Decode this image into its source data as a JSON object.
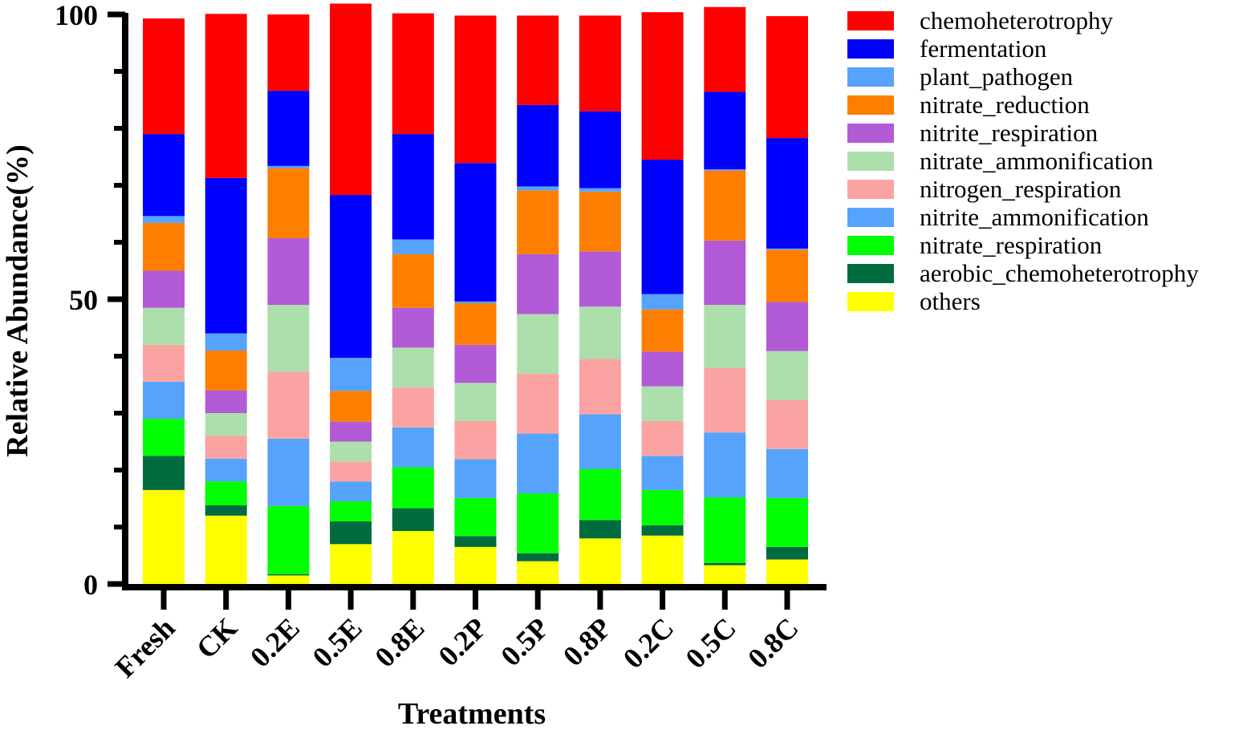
{
  "chart_data": {
    "type": "bar",
    "stacked": true,
    "title": "",
    "xlabel": "Treatments",
    "ylabel": "Relative Abundance(%)",
    "ylim": [
      0,
      100
    ],
    "yticks": [
      0,
      50,
      100
    ],
    "legend_position": "right",
    "categories": [
      "Fresh",
      "CK",
      "0.2E",
      "0.5E",
      "0.8E",
      "0.2P",
      "0.5P",
      "0.8P",
      "0.2C",
      "0.5C",
      "0.8C"
    ],
    "series": [
      {
        "name": "others",
        "color": "#FFFF00",
        "values": [
          16.5,
          12.0,
          1.5,
          7.0,
          9.3,
          6.5,
          4.0,
          8.0,
          8.5,
          3.3,
          4.3
        ]
      },
      {
        "name": "aerobic_chemoheterotrophy",
        "color": "#006B3F",
        "values": [
          6.0,
          1.8,
          0.2,
          4.0,
          4.0,
          1.9,
          1.4,
          3.2,
          1.8,
          0.4,
          2.2
        ]
      },
      {
        "name": "nitrate_respiration",
        "color": "#00FF00",
        "values": [
          6.5,
          4.2,
          12.0,
          3.5,
          7.2,
          6.7,
          10.5,
          9.0,
          6.2,
          11.5,
          8.6
        ]
      },
      {
        "name": "nitrite_ammonification",
        "color": "#55A3FC",
        "values": [
          6.5,
          4.0,
          11.8,
          3.5,
          7.0,
          6.8,
          10.5,
          9.6,
          6.0,
          11.4,
          8.6
        ]
      },
      {
        "name": "nitrogen_respiration",
        "color": "#FBA3A3",
        "values": [
          6.5,
          4.0,
          11.8,
          3.5,
          7.0,
          6.7,
          10.5,
          9.7,
          6.1,
          11.3,
          8.6
        ]
      },
      {
        "name": "nitrate_ammonification",
        "color": "#ADDFAD",
        "values": [
          6.5,
          4.0,
          11.7,
          3.5,
          7.0,
          6.7,
          10.5,
          9.2,
          6.1,
          11.1,
          8.6
        ]
      },
      {
        "name": "nitrite_respiration",
        "color": "#B35AD6",
        "values": [
          6.5,
          4.0,
          11.7,
          3.5,
          7.0,
          6.7,
          10.5,
          9.7,
          6.1,
          11.3,
          8.6
        ]
      },
      {
        "name": "nitrate_reduction",
        "color": "#FE7F00",
        "values": [
          8.4,
          7.0,
          12.3,
          5.4,
          9.4,
          7.3,
          11.2,
          10.5,
          7.4,
          12.3,
          9.2
        ]
      },
      {
        "name": "plant_pathogen",
        "color": "#55A3FC",
        "values": [
          1.2,
          3.0,
          0.4,
          5.8,
          2.6,
          0.3,
          0.7,
          0.6,
          2.7,
          0.2,
          0.2
        ]
      },
      {
        "name": "fermentation",
        "color": "#0000FF",
        "values": [
          14.4,
          27.3,
          13.2,
          28.6,
          18.5,
          24.3,
          14.3,
          13.5,
          23.6,
          13.6,
          19.4
        ]
      },
      {
        "name": "chemoheterotrophy",
        "color": "#FF0000",
        "values": [
          20.3,
          28.8,
          13.4,
          33.6,
          21.2,
          25.9,
          15.7,
          16.8,
          25.9,
          14.9,
          21.4
        ]
      }
    ]
  }
}
